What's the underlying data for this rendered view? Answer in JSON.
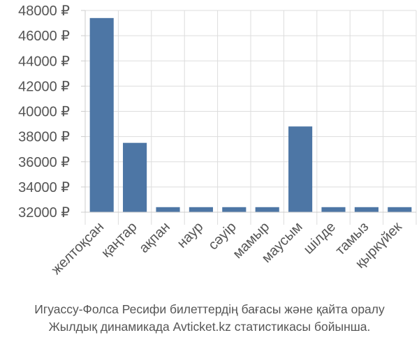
{
  "chart_data": {
    "type": "bar",
    "categories": [
      "желтоқсан",
      "қаңтар",
      "ақпан",
      "наур",
      "сәуір",
      "мамыр",
      "маусым",
      "шілде",
      "тамыз",
      "қыркүйек"
    ],
    "values": [
      47400,
      37500,
      32400,
      32400,
      32400,
      32400,
      38800,
      32400,
      32400,
      32400
    ],
    "ylim": [
      32000,
      48000
    ],
    "yticks": [
      32000,
      34000,
      36000,
      38000,
      40000,
      42000,
      44000,
      46000,
      48000
    ],
    "ytick_labels": [
      "32000 ₽",
      "34000 ₽",
      "36000 ₽",
      "38000 ₽",
      "40000 ₽",
      "42000 ₽",
      "44000 ₽",
      "46000 ₽",
      "48000 ₽"
    ],
    "grid": true,
    "bar_color": "#4d76a5"
  },
  "caption": {
    "line1": "Игуассу-Фолса Ресифи билеттердің бағасы және қайта оралу",
    "line2": "Жылдық динамикада Avticket.kz статистикасы бойынша."
  }
}
